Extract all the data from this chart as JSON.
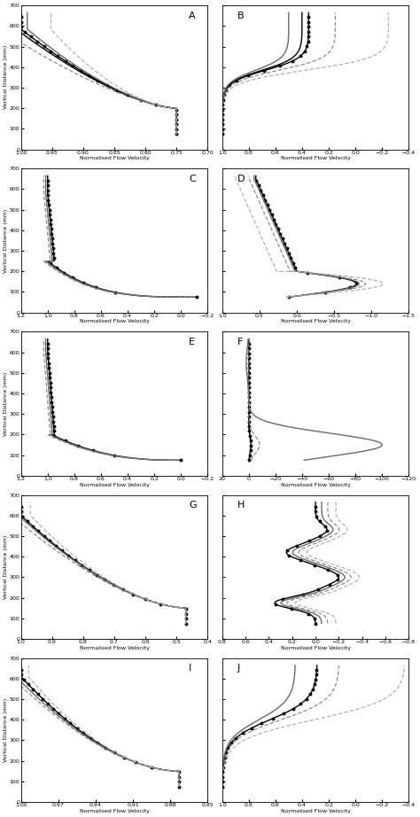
{
  "panels": [
    {
      "label": "A",
      "xlim": [
        1.0,
        0.7
      ],
      "xticks": [
        1.0,
        0.95,
        0.9,
        0.85,
        0.8,
        0.75,
        0.7
      ],
      "ylim": [
        0,
        700
      ],
      "yticks": [
        0,
        100,
        200,
        300,
        400,
        500,
        600,
        700
      ],
      "xlabel": "Normalised Flow Velocity",
      "ylabel": "Vertical Distance (mm)",
      "n": 5,
      "styles": [
        "dot",
        "solid",
        "solid",
        "dash",
        "dash"
      ],
      "colors": [
        "black",
        "black",
        "dimgray",
        "gray",
        "darkgray"
      ],
      "type": "A"
    },
    {
      "label": "B",
      "xlim": [
        1.0,
        -0.4
      ],
      "xticks": [
        1.0,
        0.8,
        0.6,
        0.4,
        0.2,
        0.0,
        -0.2,
        -0.4
      ],
      "ylim": [
        0,
        700
      ],
      "yticks": [
        0,
        100,
        200,
        300,
        400,
        500,
        600,
        700
      ],
      "xlabel": "Normalised Flow Velocity",
      "ylabel": "Vertical Distance (mm)",
      "n": 5,
      "styles": [
        "dot",
        "solid",
        "solid",
        "dash",
        "dash"
      ],
      "colors": [
        "black",
        "black",
        "dimgray",
        "gray",
        "darkgray"
      ],
      "type": "B"
    },
    {
      "label": "C",
      "xlim": [
        1.2,
        -0.2
      ],
      "xticks": [
        1.2,
        1.0,
        0.8,
        0.6,
        0.4,
        0.2,
        0.0,
        -0.2
      ],
      "ylim": [
        0,
        700
      ],
      "yticks": [
        0,
        100,
        200,
        300,
        400,
        500,
        600,
        700
      ],
      "xlabel": "Normalised Flow Velocity",
      "ylabel": "Vertical Distance (mm)",
      "n": 3,
      "styles": [
        "dot",
        "solid",
        "dash"
      ],
      "colors": [
        "black",
        "dimgray",
        "gray"
      ],
      "type": "C"
    },
    {
      "label": "D",
      "xlim": [
        1.0,
        -1.5
      ],
      "xticks": [
        1.0,
        0.5,
        0.0,
        -0.5,
        -1.0,
        -1.5
      ],
      "ylim": [
        0,
        700
      ],
      "yticks": [
        0,
        100,
        200,
        300,
        400,
        500,
        600,
        700
      ],
      "xlabel": "Normalised Flow Velocity",
      "ylabel": "Vertical Distance (mm)",
      "n": 4,
      "styles": [
        "dot",
        "solid",
        "dash",
        "dash"
      ],
      "colors": [
        "black",
        "dimgray",
        "gray",
        "darkgray"
      ],
      "type": "D"
    },
    {
      "label": "E",
      "xlim": [
        1.2,
        -0.2
      ],
      "xticks": [
        1.2,
        1.0,
        0.8,
        0.6,
        0.4,
        0.2,
        0.0,
        -0.2
      ],
      "ylim": [
        0,
        700
      ],
      "yticks": [
        0,
        100,
        200,
        300,
        400,
        500,
        600,
        700
      ],
      "xlabel": "Normalised Flow Velocity",
      "ylabel": "Vertical Distance (mm)",
      "n": 3,
      "styles": [
        "dot",
        "solid",
        "dash"
      ],
      "colors": [
        "black",
        "dimgray",
        "gray"
      ],
      "type": "E"
    },
    {
      "label": "F",
      "xlim": [
        20,
        -120
      ],
      "xticks": [
        20,
        0,
        -20,
        -40,
        -60,
        -80,
        -100,
        -120
      ],
      "ylim": [
        0,
        700
      ],
      "yticks": [
        0,
        100,
        200,
        300,
        400,
        500,
        600,
        700
      ],
      "xlabel": "Normalised Flow Velocity",
      "ylabel": "Vertical Distance (mm)",
      "n": 3,
      "styles": [
        "dot",
        "solid",
        "dash"
      ],
      "colors": [
        "black",
        "dimgray",
        "gray"
      ],
      "type": "F"
    },
    {
      "label": "G",
      "xlim": [
        1.0,
        0.4
      ],
      "xticks": [
        1.0,
        0.9,
        0.8,
        0.7,
        0.6,
        0.5,
        0.4
      ],
      "ylim": [
        0,
        700
      ],
      "yticks": [
        0,
        100,
        200,
        300,
        400,
        500,
        600,
        700
      ],
      "xlabel": "Normalised Flow Velocity",
      "ylabel": "Vertical Distance (mm)",
      "n": 4,
      "styles": [
        "dot",
        "solid",
        "dash",
        "dash"
      ],
      "colors": [
        "black",
        "dimgray",
        "gray",
        "darkgray"
      ],
      "type": "G"
    },
    {
      "label": "H",
      "xlim": [
        0.8,
        -0.8
      ],
      "xticks": [
        0.8,
        0.6,
        0.4,
        0.2,
        0.0,
        -0.2,
        -0.4,
        -0.6,
        -0.8
      ],
      "ylim": [
        0,
        700
      ],
      "yticks": [
        0,
        100,
        200,
        300,
        400,
        500,
        600,
        700
      ],
      "xlabel": "Normalised Flow Velocity",
      "ylabel": "Vertical Distance (mm)",
      "n": 4,
      "styles": [
        "dot",
        "solid",
        "dash",
        "dash"
      ],
      "colors": [
        "black",
        "dimgray",
        "gray",
        "darkgray"
      ],
      "type": "H"
    },
    {
      "label": "I",
      "xlim": [
        1.0,
        0.85
      ],
      "xticks": [
        1.0,
        0.97,
        0.94,
        0.91,
        0.88,
        0.85
      ],
      "ylim": [
        0,
        700
      ],
      "yticks": [
        0,
        100,
        200,
        300,
        400,
        500,
        600,
        700
      ],
      "xlabel": "Normalised Flow Velocity",
      "ylabel": "Vertical Distance (mm)",
      "n": 4,
      "styles": [
        "dot",
        "solid",
        "dash",
        "dash"
      ],
      "colors": [
        "black",
        "dimgray",
        "gray",
        "darkgray"
      ],
      "type": "I"
    },
    {
      "label": "J",
      "xlim": [
        1.0,
        -0.4
      ],
      "xticks": [
        1.0,
        0.8,
        0.6,
        0.4,
        0.2,
        0.0,
        -0.2,
        -0.4
      ],
      "ylim": [
        0,
        700
      ],
      "yticks": [
        0,
        100,
        200,
        300,
        400,
        500,
        600,
        700
      ],
      "xlabel": "Normalised Flow Velocity",
      "ylabel": "Vertical Distance (mm)",
      "n": 4,
      "styles": [
        "dot",
        "solid",
        "dash",
        "dash"
      ],
      "colors": [
        "black",
        "dimgray",
        "gray",
        "darkgray"
      ],
      "type": "J"
    }
  ]
}
